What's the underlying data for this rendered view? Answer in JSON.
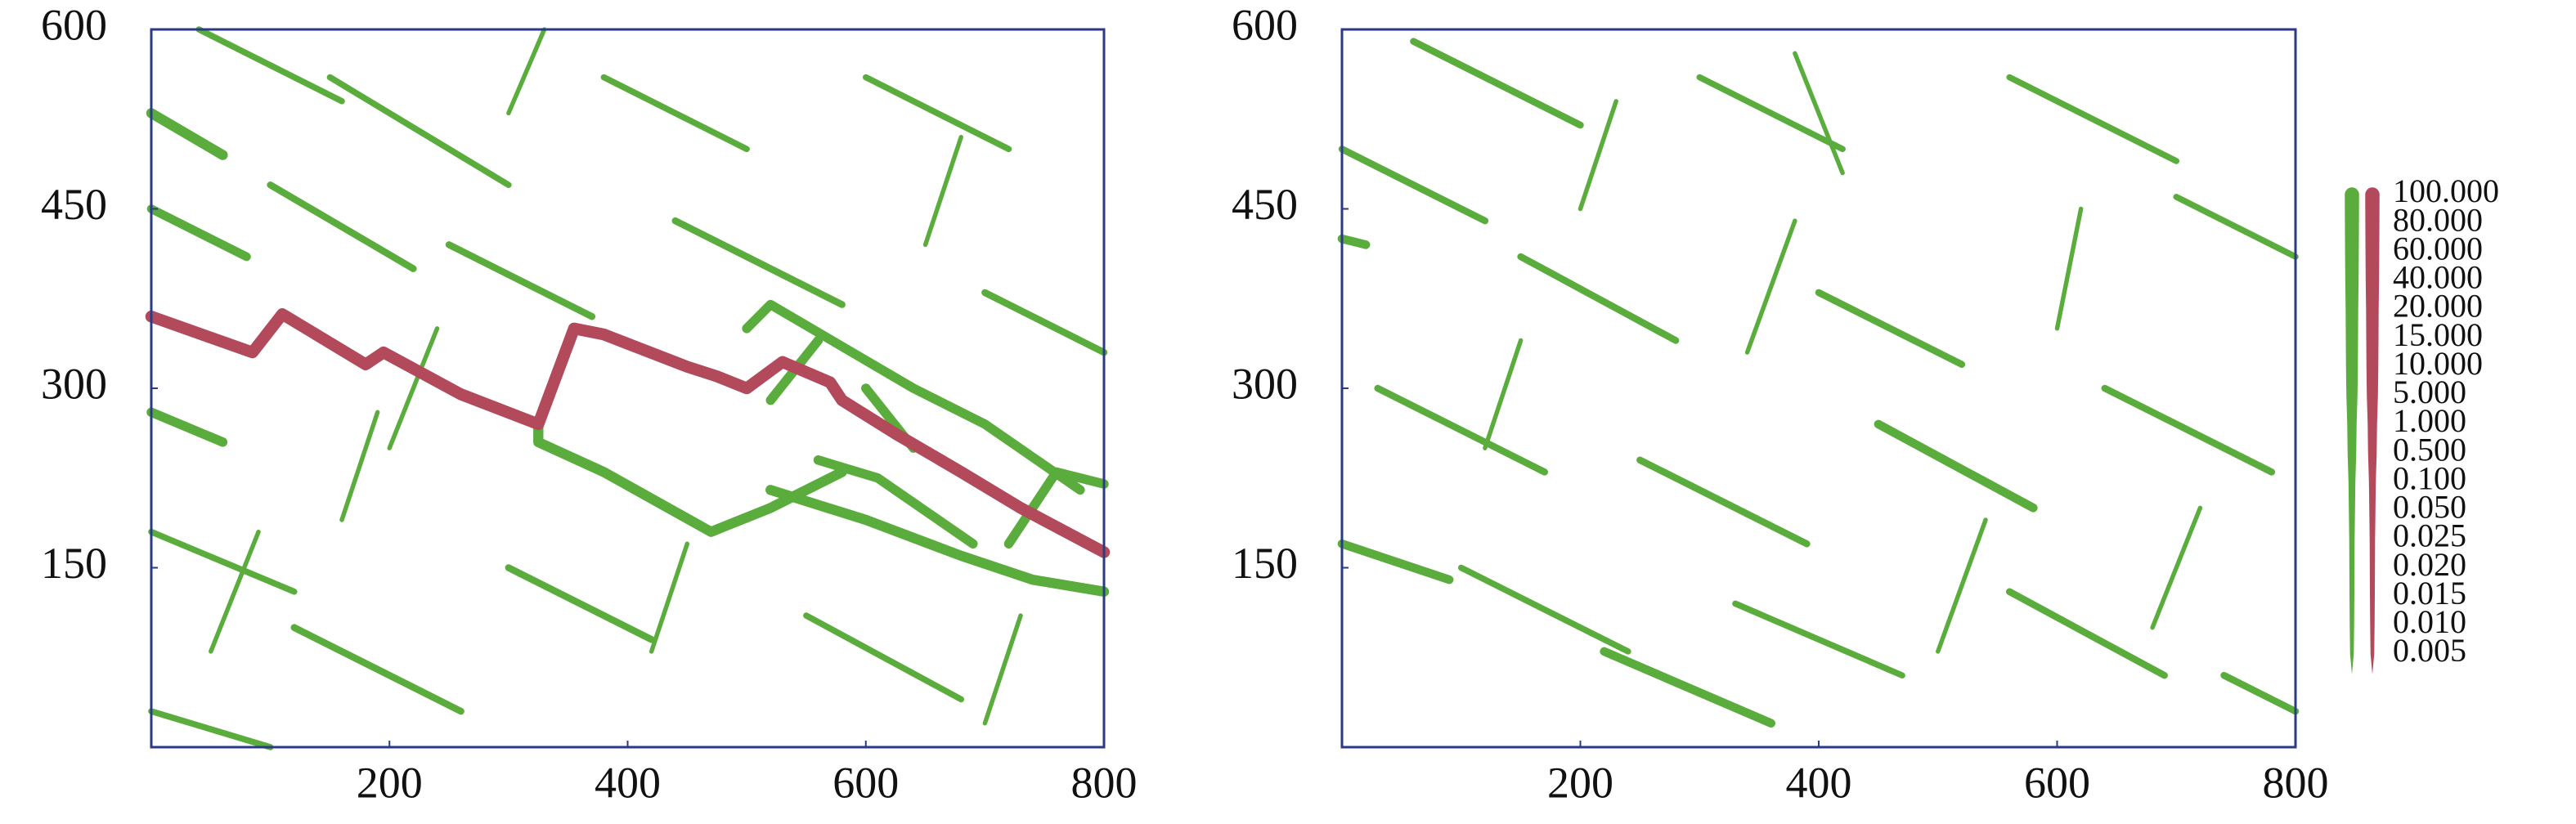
{
  "chart_data": [
    {
      "type": "fracture",
      "xlim": [
        0,
        800
      ],
      "ylim": [
        0,
        600
      ],
      "xticks": [
        200,
        400,
        600,
        800
      ],
      "yticks": [
        150,
        300,
        450,
        600
      ],
      "frame_color": "#2b3a86",
      "series": [
        {
          "color": "#5aad3c",
          "aperture": 20,
          "x": [
            0,
            60
          ],
          "y": [
            530,
            495
          ]
        },
        {
          "color": "#5aad3c",
          "aperture": 5,
          "x": [
            0,
            80
          ],
          "y": [
            450,
            410
          ]
        },
        {
          "color": "#5aad3c",
          "aperture": 10,
          "x": [
            0,
            60
          ],
          "y": [
            280,
            255
          ]
        },
        {
          "color": "#5aad3c",
          "aperture": 20,
          "x": [
            325,
            325,
            380,
            470,
            520,
            580
          ],
          "y": [
            270,
            255,
            230,
            180,
            200,
            230
          ]
        },
        {
          "color": "#5aad3c",
          "aperture": 20,
          "x": [
            520,
            600,
            680,
            740,
            800
          ],
          "y": [
            215,
            190,
            160,
            140,
            130
          ]
        },
        {
          "color": "#5aad3c",
          "aperture": 10,
          "x": [
            500,
            520,
            580,
            640,
            700,
            780
          ],
          "y": [
            350,
            370,
            335,
            300,
            270,
            215
          ]
        },
        {
          "color": "#5aad3c",
          "aperture": 10,
          "x": [
            520,
            560
          ],
          "y": [
            290,
            340
          ]
        },
        {
          "color": "#5aad3c",
          "aperture": 10,
          "x": [
            560,
            610,
            690
          ],
          "y": [
            240,
            225,
            170
          ]
        },
        {
          "color": "#5aad3c",
          "aperture": 10,
          "x": [
            720,
            760,
            800
          ],
          "y": [
            170,
            230,
            220
          ]
        },
        {
          "color": "#5aad3c",
          "aperture": 10,
          "x": [
            600,
            640
          ],
          "y": [
            300,
            250
          ]
        },
        {
          "color": "#5aad3c",
          "aperture": 0.5,
          "x": [
            0,
            120
          ],
          "y": [
            180,
            130
          ]
        },
        {
          "color": "#5aad3c",
          "aperture": 0.5,
          "x": [
            40,
            160
          ],
          "y": [
            600,
            540
          ]
        },
        {
          "color": "#5aad3c",
          "aperture": 1,
          "x": [
            100,
            220
          ],
          "y": [
            470,
            400
          ]
        },
        {
          "color": "#5aad3c",
          "aperture": 0.5,
          "x": [
            150,
            300
          ],
          "y": [
            560,
            470
          ]
        },
        {
          "color": "#5aad3c",
          "aperture": 0.1,
          "x": [
            200,
            240
          ],
          "y": [
            250,
            350
          ]
        },
        {
          "color": "#5aad3c",
          "aperture": 1,
          "x": [
            250,
            370
          ],
          "y": [
            420,
            360
          ]
        },
        {
          "color": "#5aad3c",
          "aperture": 0.1,
          "x": [
            300,
            330
          ],
          "y": [
            530,
            600
          ]
        },
        {
          "color": "#5aad3c",
          "aperture": 0.1,
          "x": [
            50,
            90
          ],
          "y": [
            80,
            180
          ]
        },
        {
          "color": "#5aad3c",
          "aperture": 1,
          "x": [
            120,
            260
          ],
          "y": [
            100,
            30
          ]
        },
        {
          "color": "#5aad3c",
          "aperture": 0.5,
          "x": [
            380,
            500
          ],
          "y": [
            560,
            500
          ]
        },
        {
          "color": "#5aad3c",
          "aperture": 0.1,
          "x": [
            420,
            450
          ],
          "y": [
            80,
            170
          ]
        },
        {
          "color": "#5aad3c",
          "aperture": 1,
          "x": [
            440,
            580
          ],
          "y": [
            440,
            370
          ]
        },
        {
          "color": "#5aad3c",
          "aperture": 0.5,
          "x": [
            600,
            720
          ],
          "y": [
            560,
            500
          ]
        },
        {
          "color": "#5aad3c",
          "aperture": 0.1,
          "x": [
            650,
            680
          ],
          "y": [
            420,
            510
          ]
        },
        {
          "color": "#5aad3c",
          "aperture": 1,
          "x": [
            700,
            800
          ],
          "y": [
            380,
            330
          ]
        },
        {
          "color": "#5aad3c",
          "aperture": 1,
          "x": [
            300,
            420
          ],
          "y": [
            150,
            90
          ]
        },
        {
          "color": "#5aad3c",
          "aperture": 0.5,
          "x": [
            550,
            680
          ],
          "y": [
            110,
            40
          ]
        },
        {
          "color": "#5aad3c",
          "aperture": 0.1,
          "x": [
            700,
            730
          ],
          "y": [
            20,
            110
          ]
        },
        {
          "color": "#5aad3c",
          "aperture": 0.5,
          "x": [
            0,
            100
          ],
          "y": [
            30,
            0
          ]
        },
        {
          "color": "#5aad3c",
          "aperture": 0.1,
          "x": [
            160,
            190
          ],
          "y": [
            190,
            280
          ]
        },
        {
          "color": "#b24a5c",
          "aperture": 100,
          "x": [
            0,
            85,
            110,
            180,
            195,
            260,
            325,
            355,
            380,
            450,
            475,
            500,
            530,
            570,
            580,
            625,
            680,
            730,
            800
          ],
          "y": [
            360,
            330,
            362,
            320,
            330,
            295,
            270,
            350,
            345,
            318,
            310,
            300,
            322,
            305,
            290,
            262,
            230,
            200,
            163
          ]
        }
      ]
    },
    {
      "type": "fracture",
      "xlim": [
        0,
        800
      ],
      "ylim": [
        0,
        600
      ],
      "xticks": [
        200,
        400,
        600,
        800
      ],
      "yticks": [
        150,
        300,
        450,
        600
      ],
      "frame_color": "#2b3a86",
      "series": [
        {
          "color": "#5aad3c",
          "aperture": 1,
          "x": [
            0,
            120
          ],
          "y": [
            500,
            440
          ]
        },
        {
          "color": "#5aad3c",
          "aperture": 5,
          "x": [
            0,
            20
          ],
          "y": [
            425,
            420
          ]
        },
        {
          "color": "#5aad3c",
          "aperture": 5,
          "x": [
            0,
            90
          ],
          "y": [
            170,
            140
          ]
        },
        {
          "color": "#5aad3c",
          "aperture": 1,
          "x": [
            60,
            200
          ],
          "y": [
            590,
            520
          ]
        },
        {
          "color": "#5aad3c",
          "aperture": 1,
          "x": [
            150,
            280
          ],
          "y": [
            410,
            340
          ]
        },
        {
          "color": "#5aad3c",
          "aperture": 0.1,
          "x": [
            120,
            150
          ],
          "y": [
            250,
            340
          ]
        },
        {
          "color": "#5aad3c",
          "aperture": 5,
          "x": [
            220,
            360
          ],
          "y": [
            80,
            20
          ]
        },
        {
          "color": "#5aad3c",
          "aperture": 0.5,
          "x": [
            300,
            420
          ],
          "y": [
            560,
            500
          ]
        },
        {
          "color": "#5aad3c",
          "aperture": 0.1,
          "x": [
            340,
            380
          ],
          "y": [
            330,
            440
          ]
        },
        {
          "color": "#5aad3c",
          "aperture": 1,
          "x": [
            400,
            520
          ],
          "y": [
            380,
            320
          ]
        },
        {
          "color": "#5aad3c",
          "aperture": 5,
          "x": [
            450,
            580
          ],
          "y": [
            270,
            200
          ]
        },
        {
          "color": "#5aad3c",
          "aperture": 0.1,
          "x": [
            500,
            540
          ],
          "y": [
            80,
            190
          ]
        },
        {
          "color": "#5aad3c",
          "aperture": 0.5,
          "x": [
            560,
            700
          ],
          "y": [
            560,
            490
          ]
        },
        {
          "color": "#5aad3c",
          "aperture": 0.1,
          "x": [
            600,
            620
          ],
          "y": [
            350,
            450
          ]
        },
        {
          "color": "#5aad3c",
          "aperture": 1,
          "x": [
            640,
            780
          ],
          "y": [
            300,
            230
          ]
        },
        {
          "color": "#5aad3c",
          "aperture": 0.1,
          "x": [
            680,
            720
          ],
          "y": [
            100,
            200
          ]
        },
        {
          "color": "#5aad3c",
          "aperture": 0.5,
          "x": [
            700,
            800
          ],
          "y": [
            460,
            410
          ]
        },
        {
          "color": "#5aad3c",
          "aperture": 1,
          "x": [
            30,
            170
          ],
          "y": [
            300,
            230
          ]
        },
        {
          "color": "#5aad3c",
          "aperture": 0.5,
          "x": [
            100,
            240
          ],
          "y": [
            150,
            80
          ]
        },
        {
          "color": "#5aad3c",
          "aperture": 1,
          "x": [
            250,
            390
          ],
          "y": [
            240,
            170
          ]
        },
        {
          "color": "#5aad3c",
          "aperture": 0.5,
          "x": [
            330,
            470
          ],
          "y": [
            120,
            60
          ]
        },
        {
          "color": "#5aad3c",
          "aperture": 0.1,
          "x": [
            200,
            230
          ],
          "y": [
            450,
            540
          ]
        },
        {
          "color": "#5aad3c",
          "aperture": 0.1,
          "x": [
            380,
            420
          ],
          "y": [
            580,
            480
          ]
        },
        {
          "color": "#5aad3c",
          "aperture": 1,
          "x": [
            740,
            800
          ],
          "y": [
            60,
            30
          ]
        },
        {
          "color": "#5aad3c",
          "aperture": 1,
          "x": [
            560,
            690
          ],
          "y": [
            130,
            60
          ]
        }
      ]
    }
  ],
  "legend": {
    "ticks": [
      {
        "value": 100,
        "label": "100.000"
      },
      {
        "value": 80,
        "label": "80.000"
      },
      {
        "value": 60,
        "label": "60.000"
      },
      {
        "value": 40,
        "label": "40.000"
      },
      {
        "value": 20,
        "label": "20.000"
      },
      {
        "value": 15,
        "label": "15.000"
      },
      {
        "value": 10,
        "label": "10.000"
      },
      {
        "value": 5,
        "label": "5.000"
      },
      {
        "value": 1,
        "label": "1.000"
      },
      {
        "value": 0.5,
        "label": "0.500"
      },
      {
        "value": 0.1,
        "label": "0.100"
      },
      {
        "value": 0.05,
        "label": "0.050"
      },
      {
        "value": 0.025,
        "label": "0.025"
      },
      {
        "value": 0.02,
        "label": "0.020"
      },
      {
        "value": 0.015,
        "label": "0.015"
      },
      {
        "value": 0.01,
        "label": "0.010"
      },
      {
        "value": 0.005,
        "label": "0.005"
      }
    ],
    "colors": [
      "#5aad3c",
      "#b24a5c"
    ]
  }
}
